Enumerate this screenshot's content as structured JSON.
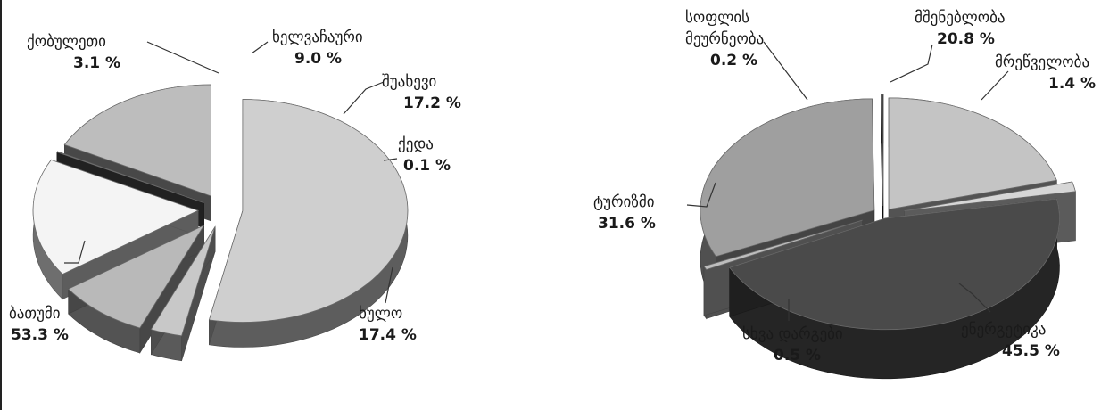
{
  "chart_data": [
    {
      "type": "pie",
      "slices": [
        {
          "label": "ბათუმი",
          "value": 53.3,
          "value_label": "53.3 %",
          "color": "#cfcfcf"
        },
        {
          "label": "ქობულეთი",
          "value": 3.1,
          "value_label": "3.1 %",
          "color": "#c8c8c8"
        },
        {
          "label": "ხელვაჩაური",
          "value": 9.0,
          "value_label": "9.0 %",
          "color": "#b9b9b9"
        },
        {
          "label": "შუახევი",
          "value": 17.2,
          "value_label": "17.2 %",
          "color": "#f4f4f4"
        },
        {
          "label": "ქედა",
          "value": 0.1,
          "value_label": "0.1 %",
          "color": "#555555"
        },
        {
          "label": "ხულო",
          "value": 17.4,
          "value_label": "17.4 %",
          "color": "#bdbdbd"
        }
      ]
    },
    {
      "type": "pie",
      "slices": [
        {
          "label": "მშენებლობა",
          "value": 20.8,
          "value_label": "20.8 %",
          "color": "#c4c4c4"
        },
        {
          "label": "მრეწველობა",
          "value": 1.4,
          "value_label": "1.4 %",
          "color": "#d6d6d6"
        },
        {
          "label": "ენერგეტიკა",
          "value": 45.5,
          "value_label": "45.5 %",
          "color": "#4a4a4a"
        },
        {
          "label": "სხვა დარგები",
          "value": 0.5,
          "value_label": "0.5 %",
          "color": "#bdbdbd"
        },
        {
          "label": "ტურიზმი",
          "value": 31.6,
          "value_label": "31.6 %",
          "color": "#9f9f9f"
        },
        {
          "label": "სოფლის მეურნეობა",
          "label_lines": [
            "სოფლის",
            "მეურნეობა"
          ],
          "value": 0.2,
          "value_label": "0.2 %",
          "color": "#1e1e1e"
        }
      ]
    }
  ]
}
